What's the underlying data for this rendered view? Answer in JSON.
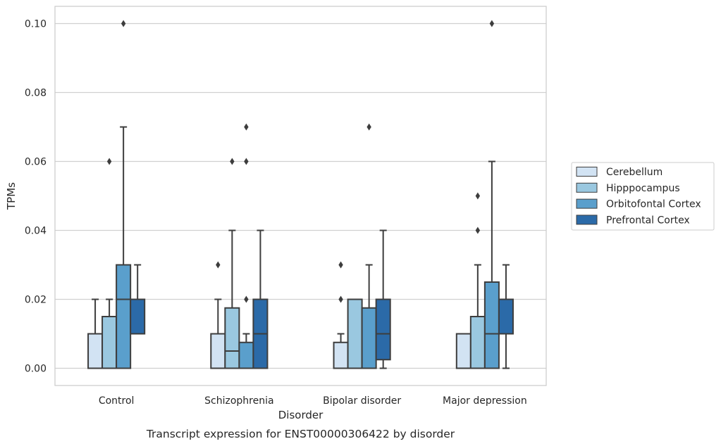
{
  "chart_data": {
    "type": "boxplot",
    "title": "",
    "caption": "Transcript expression for ENST00000306422 by disorder",
    "xlabel": "Disorder",
    "ylabel": "TPMs",
    "ylim": [
      -0.005,
      0.105
    ],
    "yticks": [
      0.0,
      0.02,
      0.04,
      0.06,
      0.08,
      0.1
    ],
    "ytick_labels": [
      "0.00",
      "0.02",
      "0.04",
      "0.06",
      "0.08",
      "0.10"
    ],
    "grid": "horizontal",
    "legend_position": "right-outside",
    "categories": [
      "Control",
      "Schizophrenia",
      "Bipolar disorder",
      "Major depression"
    ],
    "series": [
      {
        "name": "Cerebellum",
        "color": "#d2e3f3",
        "boxes": [
          {
            "q1": 0.0,
            "median": 0.0,
            "q3": 0.01,
            "whislo": 0.0,
            "whishi": 0.02,
            "fliers": []
          },
          {
            "q1": 0.0,
            "median": 0.0,
            "q3": 0.01,
            "whislo": 0.0,
            "whishi": 0.02,
            "fliers": [
              0.03
            ]
          },
          {
            "q1": 0.0,
            "median": 0.0,
            "q3": 0.0075,
            "whislo": 0.0,
            "whishi": 0.01,
            "fliers": [
              0.02,
              0.03
            ]
          },
          {
            "q1": 0.0,
            "median": 0.0,
            "q3": 0.01,
            "whislo": 0.0,
            "whishi": 0.01,
            "fliers": []
          }
        ]
      },
      {
        "name": "Hipppocampus",
        "color": "#9ac8e0",
        "boxes": [
          {
            "q1": 0.0,
            "median": 0.0,
            "q3": 0.015,
            "whislo": 0.0,
            "whishi": 0.02,
            "fliers": [
              0.06
            ]
          },
          {
            "q1": 0.0,
            "median": 0.005,
            "q3": 0.0175,
            "whislo": 0.0,
            "whishi": 0.04,
            "fliers": [
              0.06
            ]
          },
          {
            "q1": 0.0,
            "median": 0.0,
            "q3": 0.02,
            "whislo": 0.0,
            "whishi": 0.02,
            "fliers": []
          },
          {
            "q1": 0.0,
            "median": 0.0,
            "q3": 0.015,
            "whislo": 0.0,
            "whishi": 0.03,
            "fliers": [
              0.04,
              0.05
            ]
          }
        ]
      },
      {
        "name": "Orbitofontal Cortex",
        "color": "#5a9fcc",
        "boxes": [
          {
            "q1": 0.0,
            "median": 0.02,
            "q3": 0.03,
            "whislo": 0.0,
            "whishi": 0.07,
            "fliers": [
              0.1
            ]
          },
          {
            "q1": 0.0,
            "median": 0.0,
            "q3": 0.0075,
            "whislo": 0.0,
            "whishi": 0.01,
            "fliers": [
              0.02,
              0.06,
              0.07
            ]
          },
          {
            "q1": 0.0,
            "median": 0.0,
            "q3": 0.0175,
            "whislo": 0.0,
            "whishi": 0.03,
            "fliers": [
              0.07
            ]
          },
          {
            "q1": 0.0,
            "median": 0.01,
            "q3": 0.025,
            "whislo": 0.0,
            "whishi": 0.06,
            "fliers": [
              0.1
            ]
          }
        ]
      },
      {
        "name": "Prefrontal Cortex",
        "color": "#2b6aa8",
        "boxes": [
          {
            "q1": 0.01,
            "median": 0.02,
            "q3": 0.02,
            "whislo": 0.01,
            "whishi": 0.03,
            "fliers": []
          },
          {
            "q1": 0.0,
            "median": 0.01,
            "q3": 0.02,
            "whislo": 0.0,
            "whishi": 0.04,
            "fliers": []
          },
          {
            "q1": 0.0025,
            "median": 0.01,
            "q3": 0.02,
            "whislo": 0.0,
            "whishi": 0.04,
            "fliers": []
          },
          {
            "q1": 0.01,
            "median": 0.02,
            "q3": 0.02,
            "whislo": 0.0,
            "whishi": 0.03,
            "fliers": []
          }
        ]
      }
    ]
  }
}
